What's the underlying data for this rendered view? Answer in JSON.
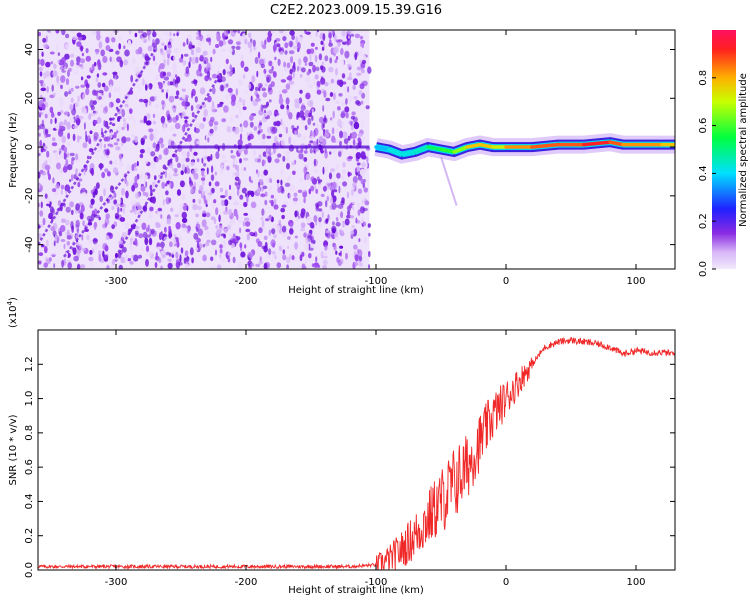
{
  "page": {
    "title": "C2E2.2023.009.15.39.G16"
  },
  "colors": {
    "snr_line": "#f02828",
    "axis": "#000000"
  },
  "chart_data": [
    {
      "type": "heatmap",
      "xlabel": "Height of straight line (km)",
      "ylabel": "Frequency (Hz)",
      "xlim": [
        -360,
        130
      ],
      "ylim": [
        -50,
        48
      ],
      "x_ticks": [
        -300,
        -200,
        -100,
        0,
        100
      ],
      "x_tick_labels": [
        "-300",
        "-200",
        "-100",
        "0",
        "100"
      ],
      "y_ticks": [
        -40,
        -20,
        0,
        20,
        40
      ],
      "y_tick_labels": [
        "-40",
        "-20",
        "0",
        "20",
        "40"
      ],
      "grid": false,
      "ridge": {
        "description_x": [
          -100,
          -90,
          -80,
          -70,
          -60,
          -50,
          -40,
          -30,
          -20,
          -10,
          0,
          20,
          40,
          60,
          80,
          90,
          100,
          120,
          130
        ],
        "frequency": [
          0,
          -1,
          -3,
          -2,
          0,
          -1,
          -2,
          0,
          1,
          0,
          0,
          0,
          1,
          1,
          2,
          1,
          1,
          1,
          1
        ],
        "amplitude": [
          0.35,
          0.4,
          0.45,
          0.4,
          0.5,
          0.55,
          0.6,
          0.7,
          0.85,
          0.7,
          0.75,
          0.9,
          0.85,
          0.9,
          0.95,
          0.8,
          0.85,
          0.8,
          0.75
        ]
      },
      "colorbar": {
        "label": "Normalized spectral amplitude",
        "ticks": [
          0.0,
          0.2,
          0.4,
          0.6,
          0.8
        ],
        "tick_labels": [
          "0.0",
          "0.2",
          "0.4",
          "0.6",
          "0.8"
        ],
        "range": [
          0,
          1
        ]
      }
    },
    {
      "type": "line",
      "xlabel": "Height of straight line (km)",
      "ylabel": "SNR (10 * v/v)",
      "scale_label": "(x10",
      "scale_exp": "4",
      "scale_close": ")",
      "xlim": [
        -360,
        130
      ],
      "ylim": [
        0,
        1.4
      ],
      "x_ticks": [
        -300,
        -200,
        -100,
        0,
        100
      ],
      "x_tick_labels": [
        "-300",
        "-200",
        "-100",
        "0",
        "100"
      ],
      "y_ticks": [
        0.0,
        0.2,
        0.4,
        0.6,
        0.8,
        1.0,
        1.2
      ],
      "y_tick_labels": [
        "0.0",
        "0.2",
        "0.4",
        "0.6",
        "0.8",
        "1.0",
        "1.2"
      ],
      "grid": false,
      "series": [
        {
          "x": [
            -360,
            -300,
            -200,
            -120,
            -100,
            -90,
            -80,
            -70,
            -60,
            -50,
            -40,
            -30,
            -20,
            -10,
            0,
            10,
            20,
            30,
            40,
            50,
            60,
            70,
            80,
            90,
            100,
            110,
            120,
            130
          ],
          "y": [
            0.02,
            0.02,
            0.02,
            0.02,
            0.03,
            0.06,
            0.12,
            0.2,
            0.3,
            0.4,
            0.5,
            0.6,
            0.75,
            0.9,
            1.0,
            1.1,
            1.2,
            1.3,
            1.33,
            1.34,
            1.33,
            1.32,
            1.3,
            1.26,
            1.28,
            1.27,
            1.27,
            1.26
          ]
        }
      ]
    }
  ]
}
